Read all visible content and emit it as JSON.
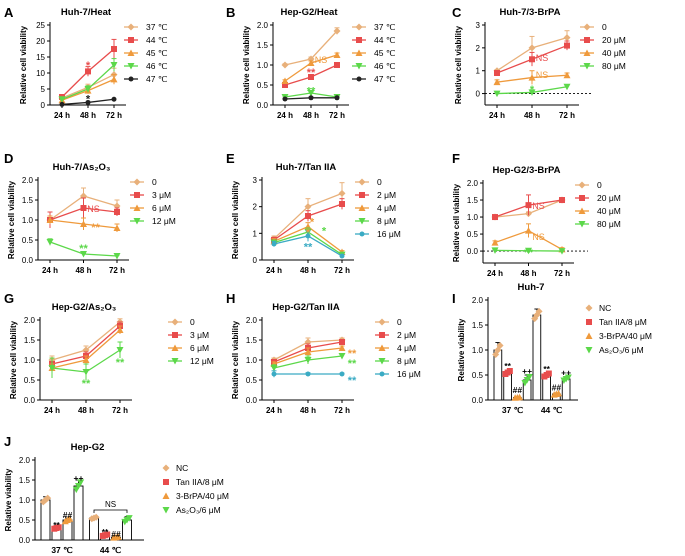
{
  "colors": {
    "c37": "#e8b07a",
    "c44": "#e84c4c",
    "c45": "#ef9a3c",
    "c46": "#5cd84a",
    "c47": "#222222",
    "c0": "#e8b07a",
    "cA": "#e84c4c",
    "cB": "#ef9a3c",
    "cC": "#5cd84a",
    "cD": "#3aabc4",
    "nc": "#e8b07a",
    "tan": "#e84c4c",
    "brpa": "#ef9a3c",
    "as": "#5cd84a",
    "axis": "#000000"
  },
  "chart_data": [
    {
      "id": "A",
      "label": "A",
      "title": "Huh-7/Heat",
      "type": "line",
      "categories": [
        "24 h",
        "48 h",
        "72 h"
      ],
      "ylabel": "Relative cell viability",
      "ylim": [
        0,
        25
      ],
      "yticks": [
        0,
        5,
        10,
        15,
        20,
        25
      ],
      "series": [
        {
          "name": "37 ℃",
          "color": "c37",
          "values": [
            2.2,
            5.5,
            9.5
          ],
          "err": [
            0.5,
            1,
            2
          ]
        },
        {
          "name": "44 ℃",
          "color": "c44",
          "values": [
            2.5,
            10.5,
            17.5
          ],
          "err": [
            0.5,
            1.5,
            3
          ]
        },
        {
          "name": "45 ℃",
          "color": "c45",
          "values": [
            1.5,
            4.5,
            8
          ],
          "err": [
            0.3,
            1,
            1.5
          ]
        },
        {
          "name": "46 ℃",
          "color": "c46",
          "values": [
            1.8,
            5,
            12.5
          ],
          "err": [
            0.3,
            1,
            2
          ]
        },
        {
          "name": "47 ℃",
          "color": "c47",
          "values": [
            0.2,
            0.8,
            1.8
          ],
          "err": [
            0,
            0,
            0
          ]
        }
      ],
      "annotations": [
        {
          "text": "*",
          "color": "c44",
          "cat": 1,
          "y": 12.5
        },
        {
          "text": "*",
          "color": "c47",
          "cat": 1,
          "y": 2
        }
      ]
    },
    {
      "id": "B",
      "label": "B",
      "title": "Hep-G2/Heat",
      "type": "line",
      "categories": [
        "24 h",
        "48 h",
        "72 h"
      ],
      "ylabel": "Relative cell viability",
      "ylim": [
        0,
        2.0
      ],
      "yticks": [
        0,
        0.5,
        1.0,
        1.5,
        2.0
      ],
      "series": [
        {
          "name": "37 ℃",
          "color": "c37",
          "values": [
            1.0,
            1.15,
            1.85
          ],
          "err": [
            0.03,
            0.05,
            0.08
          ]
        },
        {
          "name": "44 ℃",
          "color": "c44",
          "values": [
            0.5,
            0.7,
            1.0
          ],
          "err": [
            0.03,
            0.04,
            0.04
          ]
        },
        {
          "name": "45 ℃",
          "color": "c45",
          "values": [
            0.6,
            1.05,
            1.25
          ],
          "err": [
            0.03,
            0.05,
            0.05
          ]
        },
        {
          "name": "46 ℃",
          "color": "c46",
          "values": [
            0.2,
            0.3,
            0.2
          ],
          "err": [
            0.02,
            0.03,
            0.03
          ]
        },
        {
          "name": "47 ℃",
          "color": "c47",
          "values": [
            0.15,
            0.18,
            0.18
          ],
          "err": [
            0.02,
            0.02,
            0.02
          ]
        }
      ],
      "annotations": [
        {
          "text": "NS",
          "color": "c45",
          "cat": 1,
          "y": 1.15,
          "dx": 10
        },
        {
          "text": "**",
          "color": "c44",
          "cat": 1,
          "y": 0.83
        },
        {
          "text": "**",
          "color": "c46",
          "cat": 1,
          "y": 0.36
        }
      ]
    },
    {
      "id": "C",
      "label": "C",
      "title": "Huh-7/3-BrPA",
      "type": "line",
      "categories": [
        "24 h",
        "48 h",
        "72 h"
      ],
      "ylabel": "Relative cell viability",
      "ylim": [
        -0.5,
        3
      ],
      "yticks": [
        0,
        1,
        2,
        3
      ],
      "dashed_zero": true,
      "series": [
        {
          "name": "0",
          "color": "c0",
          "values": [
            1.0,
            2.0,
            2.45
          ],
          "err": [
            0.05,
            0.5,
            0.3
          ]
        },
        {
          "name": "20 μM",
          "color": "cA",
          "values": [
            0.9,
            1.5,
            2.1
          ],
          "err": [
            0.1,
            0.3,
            0.2
          ]
        },
        {
          "name": "40 μM",
          "color": "cB",
          "values": [
            0.5,
            0.7,
            0.8
          ],
          "err": [
            0.1,
            0.3,
            0.1
          ]
        },
        {
          "name": "80 μM",
          "color": "cC",
          "values": [
            0.0,
            0.05,
            0.3
          ],
          "err": [
            0.02,
            0.05,
            0.05
          ]
        }
      ],
      "annotations": [
        {
          "text": "NS",
          "color": "cA",
          "cat": 1,
          "y": 1.6,
          "dx": 10
        },
        {
          "text": "NS",
          "color": "cB",
          "cat": 1,
          "y": 0.85,
          "dx": 10
        },
        {
          "text": "*",
          "color": "cC",
          "cat": 1,
          "y": 0.2
        }
      ]
    },
    {
      "id": "D",
      "label": "D",
      "title": "Huh-7/As₂O₃",
      "type": "line",
      "categories": [
        "24 h",
        "48 h",
        "72 h"
      ],
      "ylabel": "Relative cell viability",
      "ylim": [
        0,
        2.0
      ],
      "yticks": [
        0,
        0.5,
        1.0,
        1.5,
        2.0
      ],
      "series": [
        {
          "name": "0",
          "color": "c0",
          "values": [
            1.0,
            1.6,
            1.35
          ],
          "err": [
            0.1,
            0.2,
            0.15
          ]
        },
        {
          "name": "3 μM",
          "color": "cA",
          "values": [
            1.0,
            1.3,
            1.2
          ],
          "err": [
            0.2,
            0.25,
            0.1
          ]
        },
        {
          "name": "6 μM",
          "color": "cB",
          "values": [
            1.0,
            0.9,
            0.8
          ],
          "err": [
            0.1,
            0.15,
            0.1
          ]
        },
        {
          "name": "12 μM",
          "color": "cC",
          "values": [
            0.45,
            0.15,
            0.1
          ],
          "err": [
            0.08,
            0.02,
            0.02
          ]
        }
      ],
      "annotations": [
        {
          "text": "NS",
          "color": "cA",
          "cat": 1,
          "y": 1.3,
          "dx": 10
        },
        {
          "text": "**",
          "color": "cB",
          "cat": 1,
          "y": 0.82,
          "dx": 12
        },
        {
          "text": "**",
          "color": "cC",
          "cat": 1,
          "y": 0.3
        }
      ]
    },
    {
      "id": "E",
      "label": "E",
      "title": "Huh-7/Tan IIA",
      "type": "line",
      "categories": [
        "24 h",
        "48 h",
        "72 h"
      ],
      "ylabel": "Relative cell viability",
      "ylim": [
        0,
        3
      ],
      "yticks": [
        0,
        1,
        2,
        3
      ],
      "series": [
        {
          "name": "0",
          "color": "c0",
          "values": [
            0.8,
            2.0,
            2.5
          ],
          "err": [
            0.1,
            0.3,
            0.4
          ]
        },
        {
          "name": "2 μM",
          "color": "cA",
          "values": [
            0.75,
            1.65,
            2.1
          ],
          "err": [
            0.1,
            0.2,
            0.2
          ]
        },
        {
          "name": "4 μM",
          "color": "cB",
          "values": [
            0.7,
            1.25,
            0.3
          ],
          "err": [
            0.1,
            0.15,
            0.05
          ]
        },
        {
          "name": "8 μM",
          "color": "cC",
          "values": [
            0.65,
            1.05,
            0.2
          ],
          "err": [
            0.1,
            0.15,
            0.05
          ]
        },
        {
          "name": "16 μM",
          "color": "cD",
          "values": [
            0.6,
            0.9,
            0.15
          ],
          "err": [
            0.1,
            0.2,
            0.05
          ]
        }
      ],
      "annotations": [
        {
          "text": "*",
          "color": "cB",
          "cat": 1,
          "y": 1.45,
          "dx": 4
        },
        {
          "text": "*",
          "color": "cC",
          "cat": 1,
          "y": 1.1,
          "dx": 16
        },
        {
          "text": "*",
          "color": "cB",
          "cat": 1,
          "y": 1.05
        },
        {
          "text": "**",
          "color": "cD",
          "cat": 1,
          "y": 0.5
        }
      ]
    },
    {
      "id": "F",
      "label": "F",
      "title": "Hep-G2/3-BrPA",
      "type": "line",
      "categories": [
        "24 h",
        "48 h",
        "72 h"
      ],
      "ylabel": "Relative cell viability",
      "ylim": [
        -0.35,
        2.0
      ],
      "yticks": [
        0,
        0.5,
        1.0,
        1.5,
        2.0
      ],
      "dashed_zero": true,
      "series": [
        {
          "name": "0",
          "color": "c0",
          "values": [
            1.0,
            1.1,
            1.5
          ],
          "err": [
            0.03,
            0.05,
            0.05
          ]
        },
        {
          "name": "20 μM",
          "color": "cA",
          "values": [
            1.0,
            1.35,
            1.5
          ],
          "err": [
            0.03,
            0.3,
            0.05
          ]
        },
        {
          "name": "40 μM",
          "color": "cB",
          "values": [
            0.25,
            0.6,
            0.05
          ],
          "err": [
            0.05,
            0.2,
            0.05
          ]
        },
        {
          "name": "80 μM",
          "color": "cC",
          "values": [
            0.02,
            0.01,
            0.0
          ],
          "err": [
            0.02,
            0.02,
            0.01
          ]
        }
      ],
      "annotations": [
        {
          "text": "NS",
          "color": "cA",
          "cat": 1,
          "y": 1.35,
          "dx": 10
        },
        {
          "text": "NS",
          "color": "cB",
          "cat": 1,
          "y": 0.45,
          "dx": 10
        },
        {
          "text": "**",
          "color": "cC",
          "cat": 1,
          "y": -0.02
        }
      ]
    },
    {
      "id": "G",
      "label": "G",
      "title": "Hep-G2/As₂O₃",
      "type": "line",
      "categories": [
        "24 h",
        "48 h",
        "72 h"
      ],
      "ylabel": "Relative cell viability",
      "ylim": [
        0,
        2.0
      ],
      "yticks": [
        0,
        0.5,
        1.0,
        1.5,
        2.0
      ],
      "series": [
        {
          "name": "0",
          "color": "c0",
          "values": [
            1.0,
            1.25,
            1.95
          ],
          "err": [
            0.1,
            0.1,
            0.08
          ]
        },
        {
          "name": "3 μM",
          "color": "cA",
          "values": [
            0.9,
            1.1,
            1.85
          ],
          "err": [
            0.15,
            0.1,
            0.1
          ]
        },
        {
          "name": "6 μM",
          "color": "cB",
          "values": [
            0.8,
            1.0,
            1.75
          ],
          "err": [
            0.1,
            0.1,
            0.1
          ]
        },
        {
          "name": "12 μM",
          "color": "cC",
          "values": [
            0.8,
            0.7,
            1.25
          ],
          "err": [
            0.25,
            0.2,
            0.2
          ]
        }
      ],
      "annotations": [
        {
          "text": "**",
          "color": "cC",
          "cat": 1,
          "y": 0.42
        },
        {
          "text": "**",
          "color": "cC",
          "cat": 2,
          "y": 0.95
        }
      ]
    },
    {
      "id": "H",
      "label": "H",
      "title": "Hep-G2/Tan IIA",
      "type": "line",
      "categories": [
        "24 h",
        "48 h",
        "72 h"
      ],
      "ylabel": "Relative cell viability",
      "ylim": [
        0,
        2.0
      ],
      "yticks": [
        0,
        0.5,
        1.0,
        1.5,
        2.0
      ],
      "series": [
        {
          "name": "0",
          "color": "c0",
          "values": [
            1.0,
            1.45,
            1.5
          ],
          "err": [
            0.05,
            0.1,
            0.05
          ]
        },
        {
          "name": "2 μM",
          "color": "cA",
          "values": [
            0.95,
            1.3,
            1.45
          ],
          "err": [
            0.05,
            0.1,
            0.05
          ]
        },
        {
          "name": "4 μM",
          "color": "cB",
          "values": [
            0.9,
            1.2,
            1.3
          ],
          "err": [
            0.05,
            0.1,
            0.05
          ]
        },
        {
          "name": "8 μM",
          "color": "cC",
          "values": [
            0.8,
            1.0,
            1.1
          ],
          "err": [
            0.08,
            0.1,
            0.05
          ]
        },
        {
          "name": "16 μM",
          "color": "cD",
          "values": [
            0.65,
            0.65,
            0.65
          ],
          "err": [
            0.08,
            0.03,
            0.02
          ]
        }
      ],
      "annotations": [
        {
          "text": "**",
          "color": "cB",
          "cat": 2,
          "y": 1.18,
          "dx": 10
        },
        {
          "text": "**",
          "color": "cC",
          "cat": 2,
          "y": 0.92,
          "dx": 10
        },
        {
          "text": "**",
          "color": "cD",
          "cat": 2,
          "y": 0.5,
          "dx": 10
        }
      ]
    },
    {
      "id": "I",
      "label": "I",
      "title": "Huh-7",
      "type": "bar",
      "categories": [
        "37 ℃",
        "44 ℃"
      ],
      "ylabel": "Relative viability",
      "ylim": [
        0,
        2.0
      ],
      "yticks": [
        0,
        0.5,
        1.0,
        1.5,
        2.0
      ],
      "series": [
        {
          "name": "NC",
          "color": "nc",
          "values": [
            1.0,
            1.7
          ],
          "err": [
            0.15,
            0.12
          ]
        },
        {
          "name": "Tan IIA/8 μM",
          "color": "tan",
          "values": [
            0.55,
            0.5
          ],
          "err": [
            0.05,
            0.05
          ]
        },
        {
          "name": "3-BrPA/40 μM",
          "color": "brpa",
          "values": [
            0.05,
            0.12
          ],
          "err": [
            0.01,
            0.02
          ]
        },
        {
          "name": "As₂O₃/6 μM",
          "color": "as",
          "values": [
            0.4,
            0.42
          ],
          "err": [
            0.1,
            0.05
          ]
        }
      ],
      "annotations": [
        {
          "text": "**",
          "color": "axis",
          "group": 0,
          "bar": 1,
          "y": 0.68
        },
        {
          "text": "##",
          "color": "axis",
          "group": 0,
          "bar": 2,
          "y": 0.2
        },
        {
          "text": "++",
          "color": "axis",
          "group": 0,
          "bar": 3,
          "y": 0.58
        },
        {
          "text": "**",
          "color": "axis",
          "group": 1,
          "bar": 1,
          "y": 0.62
        },
        {
          "text": "##",
          "color": "axis",
          "group": 1,
          "bar": 2,
          "y": 0.25
        },
        {
          "text": "++",
          "color": "axis",
          "group": 1,
          "bar": 3,
          "y": 0.55
        }
      ]
    },
    {
      "id": "J",
      "label": "J",
      "title": "Hep-G2",
      "type": "bar",
      "categories": [
        "37 ℃",
        "44 ℃"
      ],
      "ylabel": "Relative viability",
      "ylim": [
        0,
        2.0
      ],
      "yticks": [
        0,
        0.5,
        1.0,
        1.5,
        2.0
      ],
      "series": [
        {
          "name": "NC",
          "color": "nc",
          "values": [
            1.0,
            0.55
          ],
          "err": [
            0.08,
            0.03
          ]
        },
        {
          "name": "Tan IIA/8 μM",
          "color": "tan",
          "values": [
            0.3,
            0.12
          ],
          "err": [
            0.03,
            0.03
          ]
        },
        {
          "name": "3-BrPA/40 μM",
          "color": "brpa",
          "values": [
            0.5,
            0.07
          ],
          "err": [
            0.05,
            0.02
          ]
        },
        {
          "name": "As₂O₃/6 μM",
          "color": "as",
          "values": [
            1.35,
            0.5
          ],
          "err": [
            0.15,
            0.08
          ]
        }
      ],
      "annotations": [
        {
          "text": "**",
          "color": "axis",
          "group": 0,
          "bar": 1,
          "y": 0.38
        },
        {
          "text": "##",
          "color": "axis",
          "group": 0,
          "bar": 2,
          "y": 0.62
        },
        {
          "text": "++",
          "color": "axis",
          "group": 0,
          "bar": 3,
          "y": 1.55
        },
        {
          "text": "**",
          "color": "axis",
          "group": 1,
          "bar": 1,
          "y": 0.2
        },
        {
          "text": "##",
          "color": "axis",
          "group": 1,
          "bar": 2,
          "y": 0.15
        }
      ],
      "ns_bracket": {
        "text": "NS",
        "group": 1
      }
    }
  ]
}
